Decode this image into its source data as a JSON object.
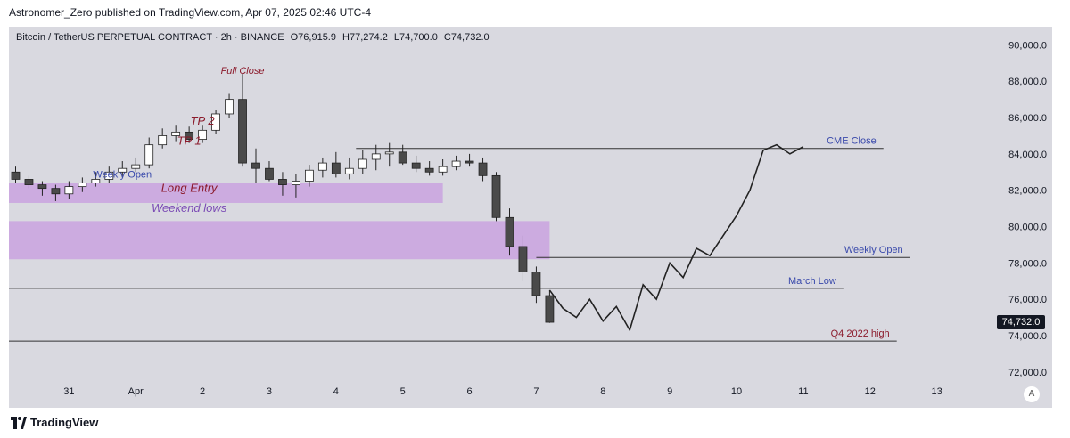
{
  "header": {
    "attribution": "Astronomer_Zero published on TradingView.com, Apr 07, 2025 02:46 UTC-4"
  },
  "footer": {
    "brand": "TradingView"
  },
  "legend": {
    "symbol": "Bitcoin / TetherUS PERPETUAL CONTRACT · 2h · BINANCE",
    "open": "O76,915.9",
    "high": "H77,274.2",
    "low": "L74,700.0",
    "close": "C74,732.0"
  },
  "price_badge": "74,732.0",
  "scale_button": "A",
  "colors": {
    "background": "#d9d9e0",
    "up": "#26a69a",
    "down": "#4a4a4a",
    "zone": "#c79be0",
    "annotation_red": "#8b1a2b",
    "annotation_blue": "#3949ab",
    "annotation_purple": "#7b4bb5"
  },
  "chart_data": {
    "type": "candlestick",
    "title": "Bitcoin / TetherUS PERPETUAL CONTRACT · 2h · BINANCE",
    "ylim": [
      71500,
      91000
    ],
    "yticks": [
      90000,
      88000,
      86000,
      84000,
      82000,
      80000,
      78000,
      76000,
      74000,
      72000
    ],
    "ytick_labels": [
      "90,000.0",
      "88,000.0",
      "86,000.0",
      "84,000.0",
      "82,000.0",
      "80,000.0",
      "78,000.0",
      "76,000.0",
      "74,000.0",
      "72,000.0"
    ],
    "x_tick_labels": [
      "31",
      "Apr",
      "2",
      "3",
      "4",
      "5",
      "6",
      "7",
      "8",
      "9",
      "10",
      "11",
      "12",
      "13"
    ],
    "x_tick_positions": [
      -1,
      0,
      1,
      2,
      3,
      4,
      5,
      6,
      7,
      8,
      9,
      10,
      11,
      12
    ],
    "xlim": [
      -1.9,
      12.9
    ],
    "candles_2h_days_from_apr1": {
      "t": [
        -1.8,
        -1.6,
        -1.4,
        -1.2,
        -1.0,
        -0.8,
        -0.6,
        -0.4,
        -0.2,
        0.0,
        0.2,
        0.4,
        0.6,
        0.8,
        1.0,
        1.2,
        1.4,
        1.6,
        1.8,
        2.0,
        2.2,
        2.4,
        2.6,
        2.8,
        3.0,
        3.2,
        3.4,
        3.6,
        3.8,
        4.0,
        4.2,
        4.4,
        4.6,
        4.8,
        5.0,
        5.2,
        5.4,
        5.6,
        5.8,
        6.0,
        6.2
      ],
      "o": [
        83000,
        82600,
        82300,
        82100,
        81800,
        82200,
        82400,
        82600,
        83000,
        83200,
        83400,
        84500,
        85000,
        85200,
        84800,
        85300,
        86200,
        87000,
        83500,
        83200,
        82600,
        82300,
        82500,
        83100,
        83500,
        82900,
        83200,
        83700,
        84000,
        84100,
        83500,
        83200,
        83000,
        83300,
        83600,
        83500,
        82800,
        80500,
        78900,
        77500,
        76200
      ],
      "h": [
        83300,
        82800,
        82500,
        82300,
        82500,
        82700,
        83000,
        83300,
        83600,
        83800,
        84900,
        85400,
        85600,
        85500,
        85600,
        86400,
        87300,
        88400,
        84300,
        83600,
        83000,
        82900,
        83400,
        83800,
        84100,
        83800,
        84200,
        84500,
        84600,
        84500,
        83900,
        83600,
        83700,
        83900,
        84000,
        83800,
        83000,
        81000,
        79500,
        77800,
        76500
      ],
      "l": [
        82400,
        82100,
        81700,
        81400,
        81500,
        81900,
        82200,
        82400,
        82700,
        83000,
        83200,
        84300,
        84700,
        84600,
        84600,
        85100,
        86000,
        83300,
        82400,
        82500,
        81700,
        81600,
        82200,
        82700,
        82700,
        82600,
        82900,
        83100,
        83300,
        83400,
        83000,
        82800,
        82800,
        83100,
        83300,
        82500,
        80300,
        78400,
        77000,
        75800,
        74700
      ],
      "c": [
        82600,
        82300,
        82100,
        81800,
        82200,
        82400,
        82600,
        83000,
        83200,
        83400,
        84500,
        85000,
        85200,
        84800,
        85300,
        86200,
        87000,
        83500,
        83200,
        82600,
        82300,
        82500,
        83100,
        83500,
        82900,
        83200,
        83700,
        84000,
        84100,
        83500,
        83200,
        83000,
        83300,
        83600,
        83500,
        82800,
        80500,
        78900,
        77500,
        76200,
        74732
      ]
    },
    "projection_path": {
      "t": [
        6.2,
        6.4,
        6.6,
        6.8,
        7.0,
        7.2,
        7.4,
        7.6,
        7.8,
        8.0,
        8.2,
        8.4,
        8.6,
        8.8,
        9.0,
        9.2,
        9.4,
        9.6,
        9.8,
        10.0
      ],
      "v": [
        76500,
        75500,
        75000,
        76000,
        74800,
        75600,
        74300,
        76800,
        76000,
        78000,
        77200,
        78800,
        78400,
        79500,
        80600,
        82000,
        84200,
        84500,
        84000,
        84400
      ]
    },
    "zones": [
      {
        "label": "Long Entry",
        "t0": -1.9,
        "t1": 4.6,
        "y0": 81300,
        "y1": 82400
      },
      {
        "label": "",
        "t0": -1.9,
        "t1": 6.2,
        "y0": 78200,
        "y1": 80300
      }
    ],
    "levels": [
      {
        "label": "CME Close",
        "value": 84300,
        "t0": 3.3,
        "t1": 11.2
      },
      {
        "label": "Weekly Open",
        "value": 78300,
        "t0": 6.0,
        "t1": 11.6
      },
      {
        "label": "March Low",
        "value": 76600,
        "t0": -1.9,
        "t1": 10.6
      },
      {
        "label": "Q4 2022 high",
        "value": 73700,
        "t0": -1.9,
        "t1": 11.4
      }
    ],
    "annotations": [
      {
        "text": "Full Close",
        "t": 1.6,
        "v": 88400
      },
      {
        "text": "TP 2",
        "t": 1.0,
        "v": 85600
      },
      {
        "text": "TP 1",
        "t": 0.8,
        "v": 84500
      },
      {
        "text": "Weekly Open",
        "t": -0.2,
        "v": 82700
      },
      {
        "text": "Long Entry",
        "t": 0.8,
        "v": 81900
      },
      {
        "text": "Weekend lows",
        "t": 0.8,
        "v": 80800
      }
    ]
  }
}
